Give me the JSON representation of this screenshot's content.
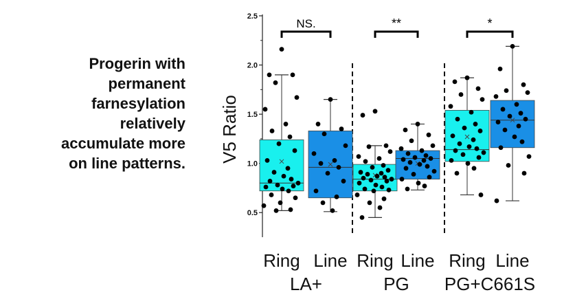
{
  "caption": {
    "lines": [
      "Progerin with",
      "permanent",
      "farnesylation",
      "relatively",
      "accumulate more",
      "on line patterns."
    ]
  },
  "colors": {
    "ring_box": "#19f0ee",
    "line_box": "#1a8fe6",
    "points": "#000000",
    "text": "#111111"
  },
  "chart_data": {
    "type": "box",
    "ylabel": "V5 Ratio",
    "ylim": [
      0.25,
      2.5
    ],
    "yticks": [
      "0.5",
      "1.0",
      "1.5",
      "2.0",
      "2.5"
    ],
    "grid": false,
    "categories": [
      "Ring",
      "Line",
      "Ring",
      "Line",
      "Ring",
      "Line"
    ],
    "groups": [
      {
        "label": "LA+",
        "boxes": [
          0,
          1
        ]
      },
      {
        "label": "PG",
        "boxes": [
          2,
          3
        ]
      },
      {
        "label": "PG+C661S",
        "boxes": [
          4,
          5
        ]
      }
    ],
    "significance": [
      "NS.",
      "**",
      "*"
    ],
    "boxes": [
      {
        "category": "Ring",
        "group": "LA+",
        "whisker_low": 0.52,
        "q1": 0.72,
        "median": 0.8,
        "mean": 1.02,
        "q3": 1.24,
        "whisker_high": 1.9,
        "points": [
          2.16,
          1.9,
          1.9,
          1.82,
          1.67,
          1.55,
          1.4,
          1.33,
          1.27,
          1.2,
          1.13,
          1.03,
          0.95,
          0.91,
          0.87,
          0.84,
          0.82,
          0.8,
          0.78,
          0.77,
          0.76,
          0.74,
          0.72,
          0.68,
          0.65,
          0.6,
          0.57,
          0.53,
          0.52
        ]
      },
      {
        "category": "Line",
        "group": "LA+",
        "whisker_low": 0.51,
        "q1": 0.65,
        "median": 0.96,
        "mean": 0.99,
        "q3": 1.33,
        "whisker_high": 1.65,
        "points": [
          1.65,
          1.4,
          1.35,
          1.3,
          1.18,
          1.1,
          1.03,
          1.0,
          0.96,
          0.9,
          0.82,
          0.72,
          0.66,
          0.6,
          0.52
        ]
      },
      {
        "category": "Ring",
        "group": "PG",
        "whisker_low": 0.45,
        "q1": 0.72,
        "median": 0.84,
        "mean": 0.88,
        "q3": 0.99,
        "whisker_high": 1.18,
        "points": [
          1.53,
          1.49,
          1.18,
          1.17,
          1.12,
          1.07,
          1.05,
          1.02,
          0.98,
          0.96,
          0.93,
          0.91,
          0.9,
          0.89,
          0.87,
          0.86,
          0.85,
          0.84,
          0.83,
          0.82,
          0.8,
          0.78,
          0.76,
          0.74,
          0.73,
          0.72,
          0.68,
          0.64,
          0.6,
          0.55,
          0.45
        ]
      },
      {
        "category": "Line",
        "group": "PG",
        "whisker_low": 0.73,
        "q1": 0.84,
        "median": 1.05,
        "mean": 1.0,
        "q3": 1.13,
        "whisker_high": 1.4,
        "points": [
          1.4,
          1.34,
          1.29,
          1.23,
          1.18,
          1.15,
          1.13,
          1.1,
          1.08,
          1.06,
          1.05,
          1.04,
          1.03,
          1.01,
          0.99,
          0.97,
          0.95,
          0.92,
          0.89,
          0.86,
          0.84,
          0.8,
          0.77,
          0.74
        ]
      },
      {
        "category": "Ring",
        "group": "PG+C661S",
        "whisker_low": 0.68,
        "q1": 1.02,
        "median": 1.14,
        "mean": 1.27,
        "q3": 1.54,
        "whisker_high": 1.87,
        "points": [
          1.87,
          1.83,
          1.76,
          1.7,
          1.65,
          1.58,
          1.52,
          1.45,
          1.4,
          1.36,
          1.33,
          1.28,
          1.24,
          1.2,
          1.17,
          1.15,
          1.13,
          1.11,
          1.09,
          1.06,
          1.03,
          1.0,
          0.95,
          0.9,
          0.68
        ]
      },
      {
        "category": "Line",
        "group": "PG+C661S",
        "whisker_low": 0.62,
        "q1": 1.16,
        "median": 1.44,
        "mean": 1.44,
        "q3": 1.64,
        "whisker_high": 2.19,
        "points": [
          2.19,
          1.96,
          1.8,
          1.74,
          1.72,
          1.68,
          1.6,
          1.55,
          1.51,
          1.48,
          1.45,
          1.42,
          1.38,
          1.34,
          1.27,
          1.22,
          1.16,
          1.07,
          0.98,
          0.9,
          0.62
        ]
      }
    ]
  }
}
